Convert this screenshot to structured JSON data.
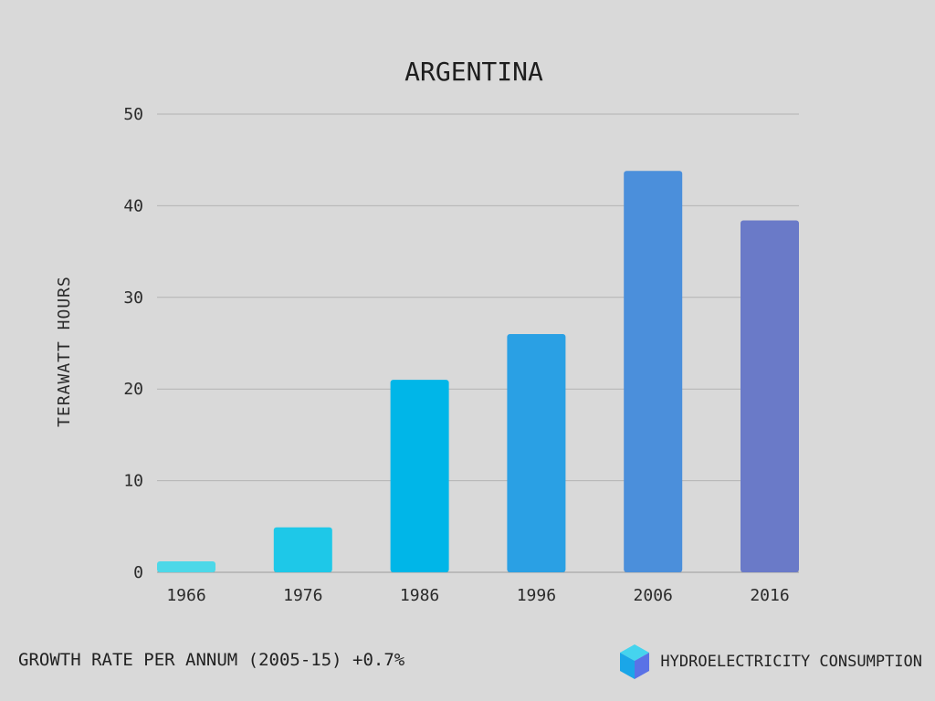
{
  "chart_data": {
    "type": "bar",
    "title": "ARGENTINA",
    "ylabel": "TERAWATT  HOURS",
    "xlabel": "",
    "categories": [
      "1966",
      "1976",
      "1986",
      "1996",
      "2006",
      "2016"
    ],
    "values": [
      1.2,
      4.9,
      21.0,
      26.0,
      43.8,
      38.4
    ],
    "ylim": [
      0,
      50
    ],
    "yticks": [
      0,
      10,
      20,
      30,
      40,
      50
    ],
    "grid": true,
    "bar_colors": [
      "#4dd8e8",
      "#1ec8e8",
      "#00b6e8",
      "#2aa0e4",
      "#4b8fdb",
      "#6a7ac8"
    ]
  },
  "footer": {
    "growth_rate": "GROWTH RATE PER ANNUM (2005-15) +0.7%",
    "source_label": "HYDROELECTRICITY CONSUMPTION",
    "icon": "cube-icon"
  },
  "colors": {
    "background": "#d9d9d9",
    "gridline": "#b3b3b3",
    "axis": "#9a9a9a"
  }
}
